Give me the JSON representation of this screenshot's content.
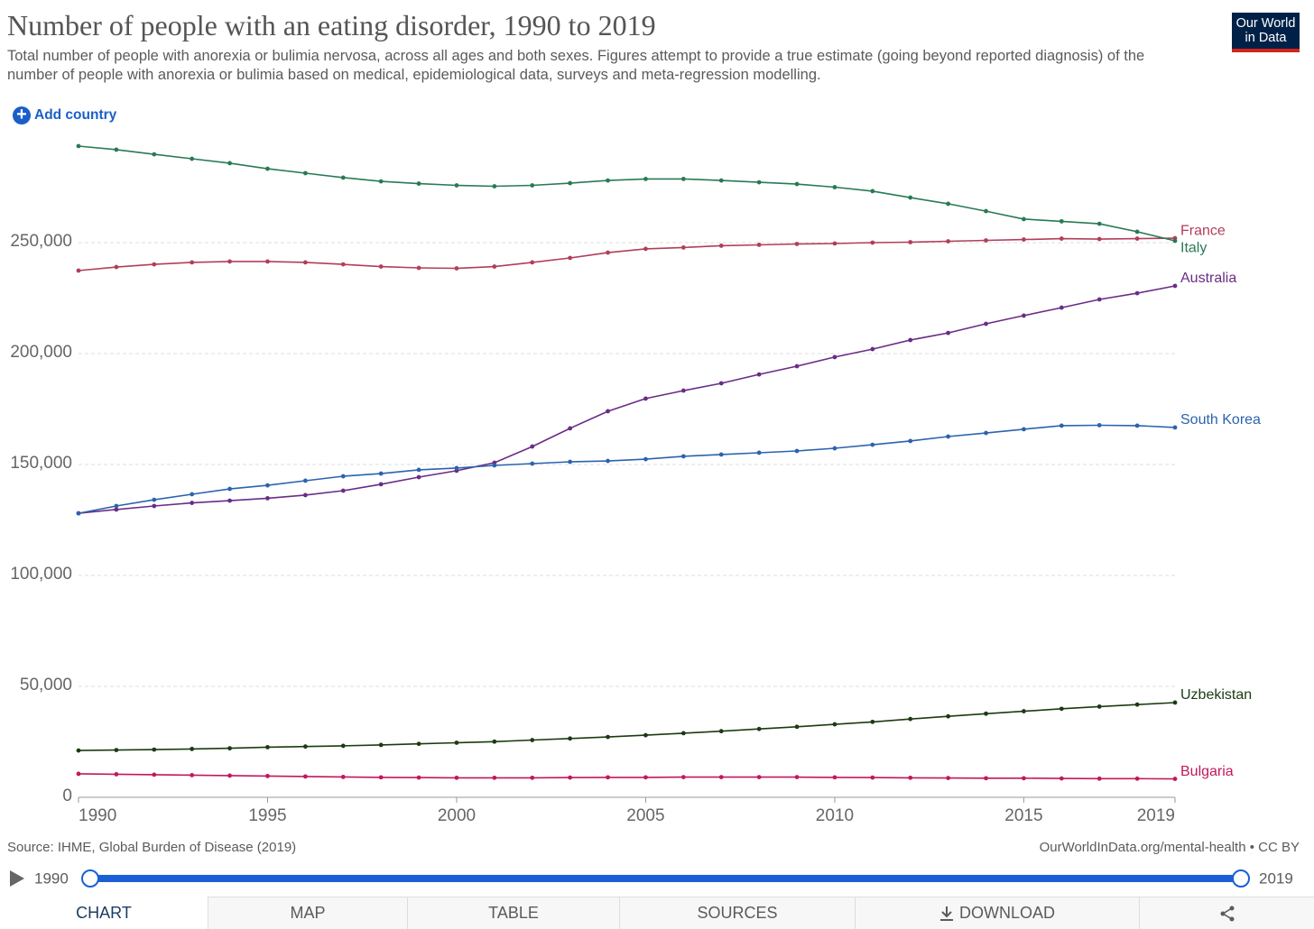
{
  "header": {
    "title": "Number of people with an eating disorder, 1990 to 2019",
    "subtitle": "Total number of people with anorexia or bulimia nervosa, across all ages and both sexes. Figures attempt to provide a true estimate (going beyond reported diagnosis) of the number of people with anorexia or bulimia based on medical, epidemiological data, surveys and meta-regression modelling.",
    "logo": [
      "Our World",
      "in Data"
    ],
    "add_button": "Add country"
  },
  "chart_data": {
    "type": "line",
    "x": [
      1990,
      1991,
      1992,
      1993,
      1994,
      1995,
      1996,
      1997,
      1998,
      1999,
      2000,
      2001,
      2002,
      2003,
      2004,
      2005,
      2006,
      2007,
      2008,
      2009,
      2010,
      2011,
      2012,
      2013,
      2014,
      2015,
      2016,
      2017,
      2018,
      2019
    ],
    "xlim": [
      1990,
      2019
    ],
    "xticks": [
      1990,
      1995,
      2000,
      2005,
      2010,
      2015,
      2019
    ],
    "ylim": [
      0,
      300000
    ],
    "yticks": [
      0,
      {
        "value": 50000,
        "label": "50,000"
      },
      {
        "value": 100000,
        "label": "100,000"
      },
      {
        "value": 150000,
        "label": "150,000"
      },
      {
        "value": 200000,
        "label": "200,000"
      },
      {
        "value": 250000,
        "label": "250,000"
      }
    ],
    "grid": true,
    "series": [
      {
        "name": "France",
        "color": "#b13e5a",
        "values": [
          237400,
          239000,
          240200,
          241100,
          241500,
          241500,
          241100,
          240200,
          239200,
          238600,
          238400,
          239200,
          241100,
          243100,
          245500,
          247200,
          247800,
          248600,
          249000,
          249400,
          249600,
          250000,
          250200,
          250600,
          251000,
          251400,
          251800,
          251600,
          251800,
          252000
        ]
      },
      {
        "name": "Italy",
        "color": "#287a55",
        "values": [
          293500,
          291900,
          289800,
          287800,
          285800,
          283300,
          281300,
          279300,
          277600,
          276600,
          275800,
          275400,
          275800,
          276800,
          278000,
          278700,
          278700,
          278000,
          277200,
          276400,
          275000,
          273200,
          270300,
          267500,
          264200,
          260600,
          259600,
          258500,
          254900,
          250800
        ]
      },
      {
        "name": "Australia",
        "color": "#6a2c85",
        "values": [
          128000,
          129700,
          131300,
          132700,
          133700,
          134800,
          136200,
          138200,
          141100,
          144300,
          147200,
          150800,
          158100,
          166300,
          174000,
          179700,
          183300,
          186600,
          190600,
          194300,
          198400,
          202000,
          206100,
          209300,
          213400,
          217100,
          220700,
          224400,
          227200,
          230500
        ]
      },
      {
        "name": "South Korea",
        "color": "#2b63ad",
        "values": [
          128000,
          131300,
          134100,
          136600,
          139000,
          140600,
          142700,
          144700,
          145900,
          147600,
          148400,
          149600,
          150400,
          151200,
          151600,
          152400,
          153700,
          154500,
          155300,
          156100,
          157300,
          158900,
          160600,
          162600,
          164200,
          165900,
          167500,
          167700,
          167500,
          166700
        ]
      },
      {
        "name": "Uzbekistan",
        "color": "#1c3a12",
        "values": [
          21100,
          21300,
          21500,
          21800,
          22100,
          22600,
          22900,
          23200,
          23600,
          24100,
          24600,
          25100,
          25800,
          26500,
          27200,
          28000,
          28900,
          29800,
          30800,
          31800,
          32900,
          34000,
          35300,
          36500,
          37700,
          38800,
          39900,
          40900,
          41800,
          42700
        ]
      },
      {
        "name": "Bulgaria",
        "color": "#c2185b",
        "values": [
          10600,
          10400,
          10200,
          10000,
          9800,
          9600,
          9400,
          9200,
          9000,
          8900,
          8800,
          8800,
          8800,
          8900,
          9000,
          9000,
          9100,
          9100,
          9100,
          9100,
          9000,
          8900,
          8800,
          8700,
          8600,
          8600,
          8500,
          8400,
          8400,
          8300
        ]
      }
    ]
  },
  "footer": {
    "source": "Source: IHME, Global Burden of Disease (2019)",
    "url": "OurWorldInData.org/mental-health • CC BY"
  },
  "timeline": {
    "start": "1990",
    "end": "2019"
  },
  "tabs": [
    "CHART",
    "MAP",
    "TABLE",
    "SOURCES",
    "DOWNLOAD"
  ]
}
